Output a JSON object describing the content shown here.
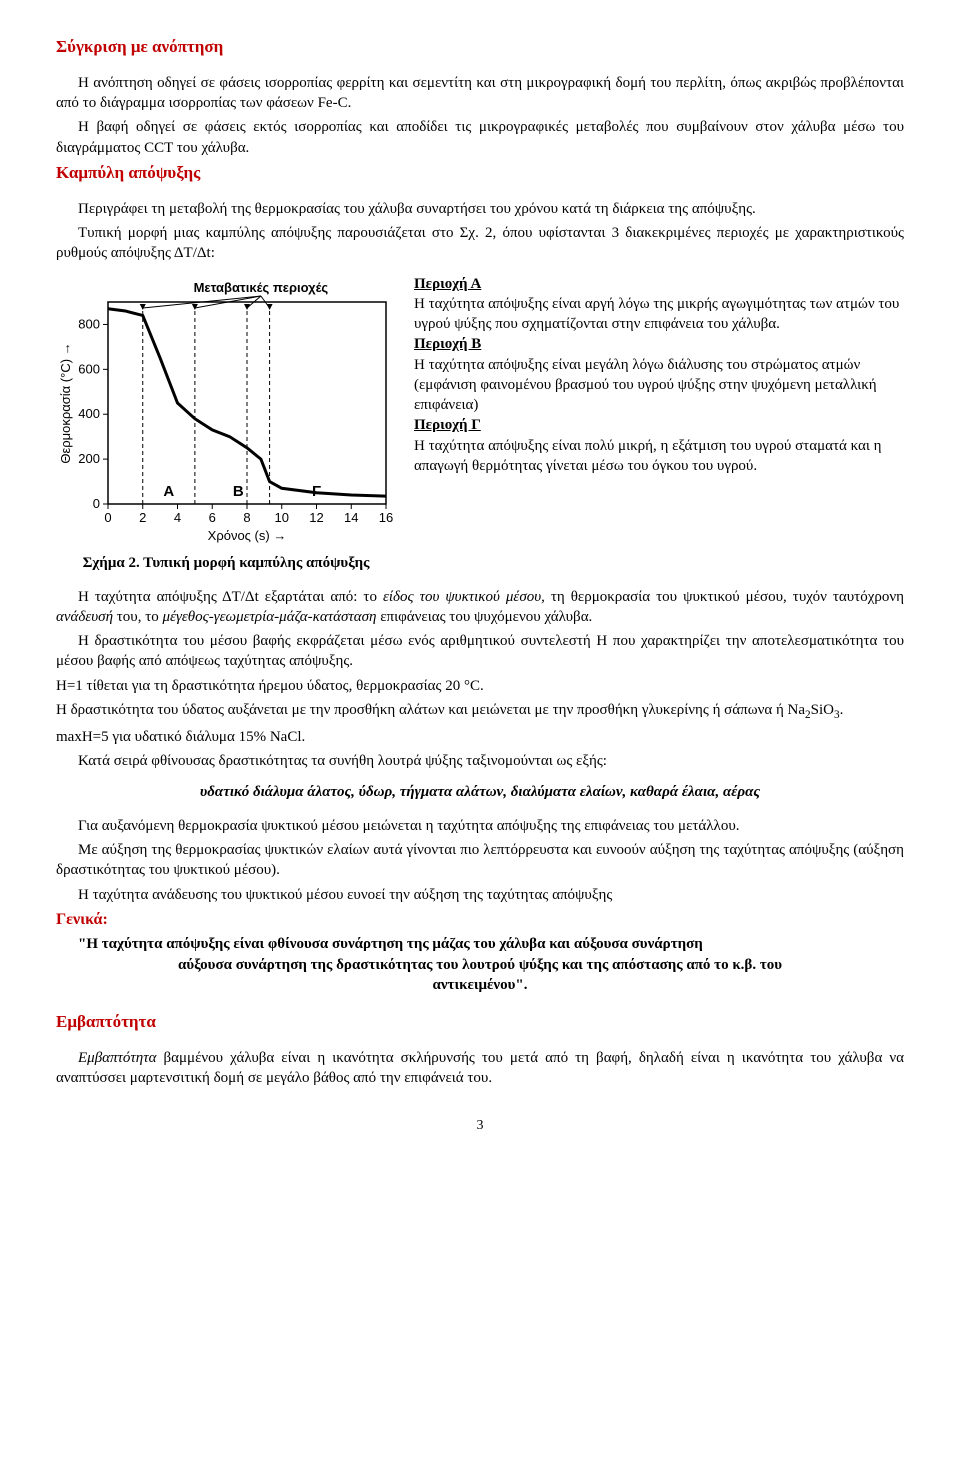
{
  "h1": "Σύγκριση με ανόπτηση",
  "intro_p1": "Η ανόπτηση οδηγεί σε φάσεις ισορροπίας φερρίτη και σεμεντίτη και στη μικρογραφική δομή του περλίτη, όπως ακριβώς προβλέπονται από το διάγραμμα ισορροπίας των φάσεων Fe-C.",
  "intro_p2": "Η βαφή οδηγεί σε φάσεις εκτός ισορροπίας και αποδίδει τις μικρογραφικές μεταβολές που συμβαίνουν στον χάλυβα μέσω του διαγράμματος CCT του χάλυβα.",
  "h2": "Καμπύλη απόψυξης",
  "curve_p1": "Περιγράφει τη μεταβολή της θερμοκρασίας του χάλυβα συναρτήσει του χρόνου κατά τη διάρκεια της απόψυξης.",
  "curve_p2": "Τυπική μορφή μιας καμπύλης απόψυξης παρουσιάζεται στο Σχ. 2, όπου υφίστανται 3 διακεκριμένες περιοχές με χαρακτηριστικούς ρυθμούς απόψυξης ΔT/Δt:",
  "chart": {
    "caption": "Σχήμα 2. Τυπική μορφή καμπύλης απόψυξης",
    "y_label": "Θερμοκρασία (°C) →",
    "x_label": "Χρόνος (s) →",
    "top_label": "Μεταβατικές περιοχές",
    "x_ticks": [
      0,
      2,
      4,
      6,
      8,
      10,
      12,
      14,
      16
    ],
    "y_ticks": [
      0,
      200,
      400,
      600,
      800
    ],
    "xlim": [
      0,
      16
    ],
    "ylim": [
      0,
      900
    ],
    "region_labels": [
      "Α",
      "Β",
      "Γ"
    ],
    "region_x": [
      3.5,
      7.5,
      12
    ],
    "curve_points": [
      [
        0,
        870
      ],
      [
        1,
        860
      ],
      [
        2,
        840
      ],
      [
        3,
        650
      ],
      [
        4,
        450
      ],
      [
        5,
        380
      ],
      [
        6,
        330
      ],
      [
        7,
        300
      ],
      [
        8,
        250
      ],
      [
        8.8,
        200
      ],
      [
        9.3,
        100
      ],
      [
        10,
        70
      ],
      [
        12,
        50
      ],
      [
        14,
        40
      ],
      [
        16,
        35
      ]
    ],
    "transition_x": [
      2,
      5,
      8,
      9.3
    ],
    "line_color": "#000000",
    "line_width": 3,
    "dash_color": "#000000",
    "axis_color": "#000000",
    "background": "#ffffff",
    "font_size": 13
  },
  "regionA_title": "Περιοχή Α",
  "regionA_text": "Η ταχύτητα απόψυξης είναι αργή λόγω της μικρής αγωγιμότητας των ατμών του υγρού ψύξης που σχηματίζονται στην επιφάνεια του χάλυβα.",
  "regionB_title": "Περιοχή Β",
  "regionB_text": "Η ταχύτητα απόψυξης είναι μεγάλη λόγω διάλυσης του στρώματος ατμών (εμφάνιση φαινομένου βρασμού του υγρού ψύξης στην ψυχόμενη μεταλλική επιφάνεια)",
  "regionC_title": "Περιοχή Γ",
  "regionC_text": "Η ταχύτητα απόψυξης είναι πολύ μικρή, η εξάτμιση του υγρού σταματά και η απαγωγή θερμότητας γίνεται μέσω του όγκου του υγρού.",
  "rate_p1_a": "Η ταχύτητα απόψυξης ΔT/Δt εξαρτάται από: το ",
  "rate_p1_b": "είδος του ψυκτικού μέσου",
  "rate_p1_c": ", τη θερμοκρασία του ψυκτικού μέσου, τυχόν ταυτόχρονη ",
  "rate_p1_d": "ανάδευσή",
  "rate_p1_e": " του, το ",
  "rate_p1_f": "μέγεθος-γεωμετρία-μάζα-κατάσταση",
  "rate_p1_g": " επιφάνειας του ψυχόμενου χάλυβα.",
  "rate_p2": "Η δραστικότητα του μέσου βαφής εκφράζεται μέσω ενός αριθμητικού συντελεστή Η που χαρακτηρίζει την αποτελεσματικότητα του μέσου βαφής από απόψεως ταχύτητας απόψυξης.",
  "rate_p3": "Η=1 τίθεται για τη δραστικότητα ήρεμου ύδατος, θερμοκρασίας 20 °C.",
  "rate_p4_a": "Η δραστικότητα του ύδατος αυξάνεται με την προσθήκη αλάτων και μειώνεται με την προσθήκη γλυκερίνης ή σάπωνα ή Na",
  "rate_p4_b": "2",
  "rate_p4_c": "SiO",
  "rate_p4_d": "3",
  "rate_p4_e": ".",
  "rate_p5": "maxH=5 για υδατικό διάλυμα 15% NaCl.",
  "rate_p6": "Κατά σειρά φθίνουσας δραστικότητας τα συνήθη λουτρά ψύξης ταξινομούνται ως εξής:",
  "media_list": "υδατικό διάλυμα άλατος, ύδωρ, τήγματα αλάτων, διαλύματα ελαίων, καθαρά έλαια, αέρας",
  "p_after_1": "Για αυξανόμενη θερμοκρασία ψυκτικού μέσου μειώνεται η ταχύτητα απόψυξης της επιφάνειας του μετάλλου.",
  "p_after_2": "Με αύξηση της θερμοκρασίας ψυκτικών ελαίων αυτά γίνονται πιο λεπτόρρευστα και ευνοούν αύξηση της ταχύτητας απόψυξης (αύξηση δραστικότητας του ψυκτικού μέσου).",
  "p_after_3": "Η ταχύτητα ανάδευσης του ψυκτικού μέσου ευνοεί την αύξηση της ταχύτητας απόψυξης",
  "genika": "Γενικά:",
  "quote_l1": "\"Η ταχύτητα απόψυξης είναι φθίνουσα συνάρτηση της μάζας του χάλυβα και αύξουσα συνάρτηση",
  "quote_l2": "αύξουσα συνάρτηση της δραστικότητας του λουτρού ψύξης και της απόστασης από το κ.β. του",
  "quote_l3": "αντικειμένου\".",
  "h3": "Εμβαπτότητα",
  "emb_p1_a": "Εμβαπτότητα",
  "emb_p1_b": " βαμμένου χάλυβα είναι η ικανότητα σκλήρυνσής του μετά από τη βαφή, δηλαδή είναι η ικανότητα του χάλυβα να αναπτύσσει μαρτενσιτική δομή σε μεγάλο βάθος από την επιφάνειά του.",
  "pagenum": "3"
}
